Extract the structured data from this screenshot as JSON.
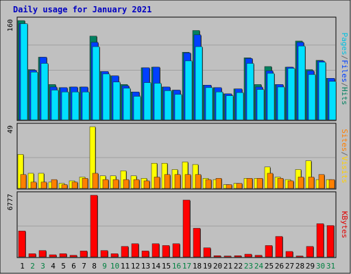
{
  "chart_data": {
    "type": "bar",
    "title": "Daily usage for January 2021",
    "days": [
      "1",
      "2",
      "3",
      "4",
      "5",
      "6",
      "7",
      "8",
      "9",
      "10",
      "11",
      "12",
      "13",
      "14",
      "15",
      "16",
      "17",
      "18",
      "19",
      "20",
      "21",
      "22",
      "23",
      "24",
      "25",
      "26",
      "27",
      "28",
      "29",
      "30",
      "31"
    ],
    "weekend_days": [
      2,
      3,
      9,
      10,
      16,
      17,
      23,
      24,
      30,
      31
    ],
    "panels": [
      {
        "id": "top",
        "ymax": 160,
        "ymax_label": "160",
        "legend": [
          {
            "label": "Pages",
            "color": "#00c0e0"
          },
          {
            "label": "/",
            "color": "#666666"
          },
          {
            "label": "Files",
            "color": "#0040ff"
          },
          {
            "label": "/",
            "color": "#666666"
          },
          {
            "label": "Hits",
            "color": "#008060"
          }
        ],
        "series": [
          {
            "name": "Hits",
            "color": "#008060",
            "values": [
              160,
              81,
              101,
              57,
              52,
              53,
              53,
              135,
              78,
              71,
              57,
              45,
              84,
              85,
              53,
              48,
              109,
              144,
              56,
              52,
              42,
              50,
              100,
              57,
              86,
              57,
              85,
              127,
              81,
              96,
              67
            ]
          },
          {
            "name": "Files",
            "color": "#0040ff",
            "values": [
              155,
              80,
              101,
              53,
              52,
              53,
              53,
              125,
              78,
              71,
              55,
              45,
              84,
              85,
              53,
              48,
              108,
              137,
              56,
              52,
              42,
              50,
              99,
              53,
              79,
              57,
              85,
              125,
              79,
              95,
              67
            ]
          },
          {
            "name": "Pages",
            "color": "#00e0ff",
            "values": [
              155,
              77,
              91,
              48,
              45,
              45,
              45,
              118,
              74,
              61,
              51,
              38,
              60,
              59,
              47,
              41,
              95,
              118,
              52,
              45,
              39,
              44,
              91,
              49,
              75,
              53,
              83,
              119,
              73,
              93,
              62
            ]
          }
        ]
      },
      {
        "id": "mid",
        "ymax": 49,
        "ymax_label": "49",
        "legend": [
          {
            "label": "Sites",
            "color": "#ff8000"
          },
          {
            "label": "/",
            "color": "#666666"
          },
          {
            "label": "Visits",
            "color": "#ffd000"
          }
        ],
        "series": [
          {
            "name": "Visits",
            "color": "#ffff00",
            "values": [
              27,
              12,
              12,
              5,
              4,
              6,
              9,
              49,
              10,
              10,
              14,
              10,
              8,
              20,
              20,
              15,
              21,
              19,
              8,
              7,
              3,
              4,
              8,
              8,
              17,
              9,
              7,
              15,
              22,
              7,
              7
            ]
          },
          {
            "name": "Sites",
            "color": "#ff8000",
            "values": [
              11,
              5,
              5,
              7,
              3,
              5,
              8,
              12,
              7,
              7,
              7,
              7,
              6,
              9,
              11,
              11,
              11,
              11,
              7,
              8,
              3,
              4,
              8,
              8,
              12,
              8,
              6,
              9,
              9,
              11,
              7
            ]
          }
        ]
      },
      {
        "id": "bot",
        "ymax": 6777,
        "ymax_label": "6777",
        "legend": [
          {
            "label": "KBytes",
            "color": "#e00000"
          }
        ],
        "series": [
          {
            "name": "KBytes",
            "color": "#ff0000",
            "values": [
              2850,
              350,
              700,
              230,
              350,
              180,
              650,
              6777,
              700,
              350,
              1150,
              1450,
              650,
              1450,
              1250,
              1450,
              6250,
              3150,
              1000,
              130,
              100,
              130,
              300,
              180,
              1250,
              2250,
              600,
              100,
              1150,
              3650,
              3450
            ]
          }
        ]
      }
    ]
  },
  "colors": {
    "background": "#c0c0c0",
    "title": "#0000c0",
    "weekday_label": "#000000",
    "weekend_label": "#008040",
    "grid": "#a0a0a0"
  }
}
